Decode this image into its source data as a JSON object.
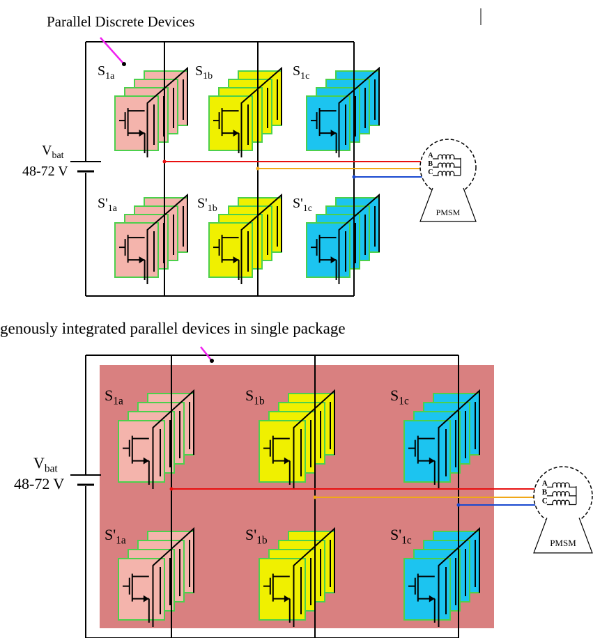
{
  "top": {
    "label": "Parallel Discrete Devices",
    "switches": [
      {
        "name": "S",
        "sub": "1a"
      },
      {
        "name": "S",
        "sub": "1b"
      },
      {
        "name": "S",
        "sub": "1c"
      },
      {
        "name": "S'",
        "sub": "1a"
      },
      {
        "name": "S'",
        "sub": "1b"
      },
      {
        "name": "S'",
        "sub": "1c"
      }
    ],
    "source": {
      "name": "V",
      "sub": "bat",
      "voltage": "48-72 V"
    },
    "motor": {
      "phases": [
        "A",
        "B",
        "C"
      ],
      "label": "PMSM"
    }
  },
  "bottom": {
    "label": "genously integrated parallel devices in single package",
    "switches": [
      {
        "name": "S",
        "sub": "1a"
      },
      {
        "name": "S",
        "sub": "1b"
      },
      {
        "name": "S",
        "sub": "1c"
      },
      {
        "name": "S'",
        "sub": "1a"
      },
      {
        "name": "S'",
        "sub": "1b"
      },
      {
        "name": "S'",
        "sub": "1c"
      }
    ],
    "source": {
      "name": "V",
      "sub": "bat",
      "voltage": "48-72 V"
    },
    "motor": {
      "phases": [
        "A",
        "B",
        "C"
      ],
      "label": "PMSM"
    }
  }
}
